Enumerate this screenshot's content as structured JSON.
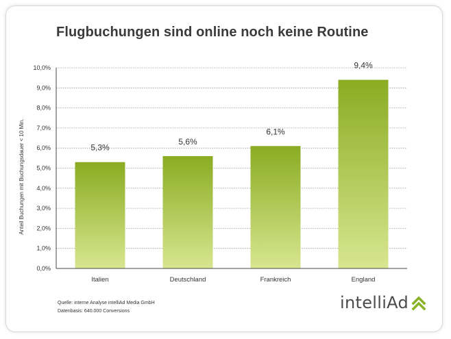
{
  "title": "Flugbuchungen sind online noch keine Routine",
  "colors": {
    "bar_top": "#8aac22",
    "bar_bottom": "#d8e690",
    "grid": "#999999",
    "logo_accent": "#8ab32a"
  },
  "chart_data": {
    "type": "bar",
    "title": "Flugbuchungen sind online noch keine Routine",
    "ylabel": "Anteil Buchungen mit Buchungsdauer < 10 Min.",
    "xlabel": "",
    "categories": [
      "Italien",
      "Deutschland",
      "Frankreich",
      "England"
    ],
    "values": [
      5.3,
      5.6,
      6.1,
      9.4
    ],
    "data_labels": [
      "5,3%",
      "5,6%",
      "6,1%",
      "9,4%"
    ],
    "ylim": [
      0,
      10
    ],
    "yticks": [
      0,
      1,
      2,
      3,
      4,
      5,
      6,
      7,
      8,
      9,
      10
    ],
    "ytick_labels": [
      "0,0%",
      "1,0%",
      "2,0%",
      "3,0%",
      "4,0%",
      "5,0%",
      "6,0%",
      "7,0%",
      "8,0%",
      "9,0%",
      "10,0%"
    ],
    "grid": true
  },
  "source": {
    "line1": "Quelle:  interne Analyse intelliAd Media GmbH",
    "line2": "Datenbasis: 640.000 Conversions"
  },
  "logo": {
    "text": "intelliAd",
    "icon": "double-chevron-up-icon"
  }
}
